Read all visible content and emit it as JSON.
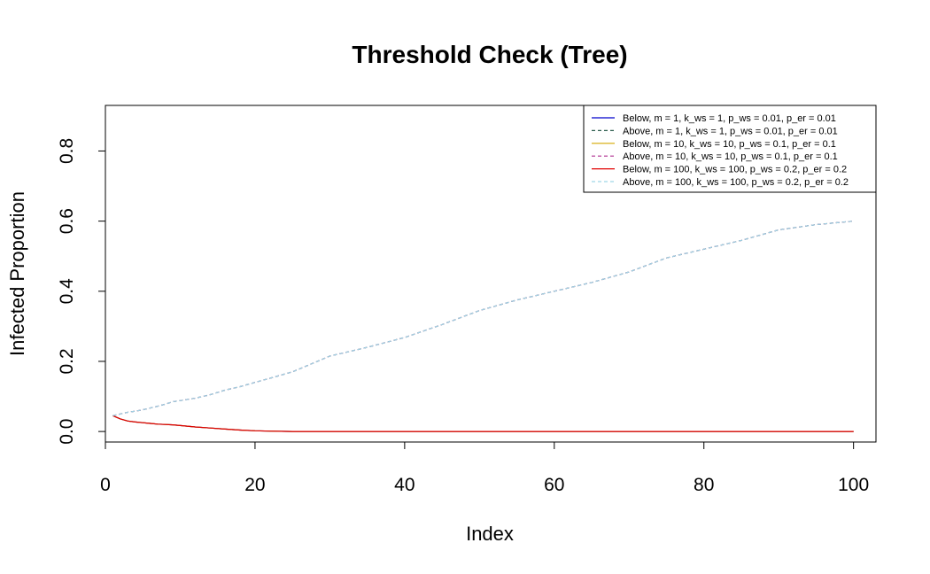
{
  "chart_data": {
    "type": "line",
    "title": "Threshold Check (Tree)",
    "xlabel": "Index",
    "ylabel": "Infected Proportion",
    "xlim": [
      0,
      103
    ],
    "ylim": [
      -0.03,
      0.93
    ],
    "xticks": [
      0,
      20,
      40,
      60,
      80,
      100
    ],
    "yticks": [
      0.0,
      0.2,
      0.4,
      0.6,
      0.8
    ],
    "xtick_labels": [
      "0",
      "20",
      "40",
      "60",
      "80",
      "100"
    ],
    "ytick_labels": [
      "0.0",
      "0.2",
      "0.4",
      "0.6",
      "0.8"
    ],
    "grid": false,
    "legend_position": "top-right",
    "x": [
      1,
      2,
      3,
      4,
      5,
      6,
      7,
      8,
      9,
      10,
      12,
      14,
      16,
      18,
      20,
      22,
      25,
      30,
      35,
      40,
      45,
      50,
      55,
      60,
      65,
      70,
      75,
      80,
      85,
      90,
      95,
      100
    ],
    "series": [
      {
        "name": "Below, m = 1, k_ws = 1, p_ws = 0.01, p_er = 0.01",
        "color": "#0000cc",
        "dash": "solid",
        "values": [
          0.045,
          0.036,
          0.03,
          0.027,
          0.025,
          0.023,
          0.021,
          0.02,
          0.019,
          0.017,
          0.013,
          0.01,
          0.007,
          0.004,
          0.002,
          0.001,
          0.0,
          0.0,
          0.0,
          0.0,
          0.0,
          0.0,
          0.0,
          0.0,
          0.0,
          0.0,
          0.0,
          0.0,
          0.0,
          0.0,
          0.0,
          0.0
        ]
      },
      {
        "name": "Above, m = 1, k_ws = 1, p_ws = 0.01, p_er = 0.01",
        "color": "#2f5f4f",
        "dash": "dashed",
        "values": [
          0.045,
          0.05,
          0.055,
          0.058,
          0.062,
          0.067,
          0.072,
          0.078,
          0.085,
          0.088,
          0.095,
          0.105,
          0.118,
          0.128,
          0.14,
          0.152,
          0.17,
          0.215,
          0.24,
          0.268,
          0.305,
          0.345,
          0.375,
          0.4,
          0.425,
          0.455,
          0.495,
          0.52,
          0.545,
          0.575,
          0.59,
          0.6
        ]
      },
      {
        "name": "Below, m = 10, k_ws = 10, p_ws = 0.1, p_er = 0.1",
        "color": "#d4a800",
        "dash": "solid",
        "values": [
          0.045,
          0.036,
          0.03,
          0.027,
          0.025,
          0.023,
          0.021,
          0.02,
          0.019,
          0.017,
          0.013,
          0.01,
          0.007,
          0.004,
          0.002,
          0.001,
          0.0,
          0.0,
          0.0,
          0.0,
          0.0,
          0.0,
          0.0,
          0.0,
          0.0,
          0.0,
          0.0,
          0.0,
          0.0,
          0.0,
          0.0,
          0.0
        ]
      },
      {
        "name": "Above, m = 10, k_ws = 10, p_ws = 0.1, p_er = 0.1",
        "color": "#b03090",
        "dash": "dashed",
        "values": [
          0.045,
          0.05,
          0.055,
          0.058,
          0.062,
          0.067,
          0.072,
          0.078,
          0.085,
          0.088,
          0.095,
          0.105,
          0.118,
          0.128,
          0.14,
          0.152,
          0.17,
          0.215,
          0.24,
          0.268,
          0.305,
          0.345,
          0.375,
          0.4,
          0.425,
          0.455,
          0.495,
          0.52,
          0.545,
          0.575,
          0.59,
          0.6
        ]
      },
      {
        "name": "Below, m = 100, k_ws = 100, p_ws = 0.2, p_er = 0.2",
        "color": "#e00000",
        "dash": "solid",
        "values": [
          0.045,
          0.036,
          0.03,
          0.027,
          0.025,
          0.023,
          0.021,
          0.02,
          0.019,
          0.017,
          0.013,
          0.01,
          0.007,
          0.004,
          0.002,
          0.001,
          0.0,
          0.0,
          0.0,
          0.0,
          0.0,
          0.0,
          0.0,
          0.0,
          0.0,
          0.0,
          0.0,
          0.0,
          0.0,
          0.0,
          0.0,
          0.0
        ]
      },
      {
        "name": "Above, m = 100, k_ws = 100, p_ws = 0.2, p_er = 0.2",
        "color": "#9fd8e6",
        "dash": "dashed",
        "values": [
          0.045,
          0.05,
          0.055,
          0.058,
          0.062,
          0.067,
          0.072,
          0.078,
          0.085,
          0.088,
          0.095,
          0.105,
          0.118,
          0.128,
          0.14,
          0.152,
          0.17,
          0.215,
          0.24,
          0.268,
          0.305,
          0.345,
          0.375,
          0.4,
          0.425,
          0.455,
          0.495,
          0.52,
          0.545,
          0.575,
          0.59,
          0.6
        ]
      }
    ]
  }
}
